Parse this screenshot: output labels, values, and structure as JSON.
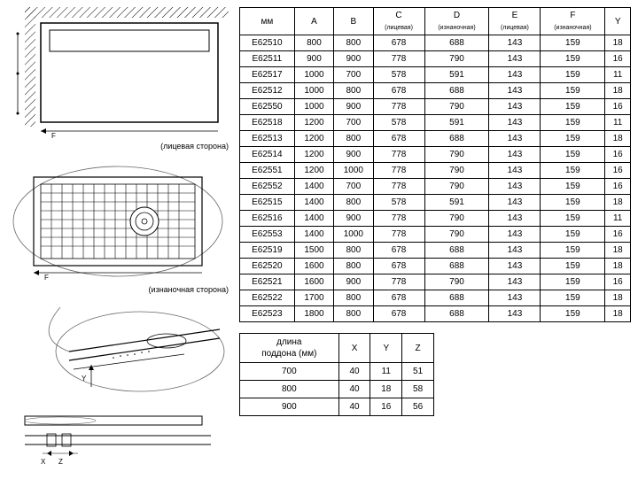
{
  "diagram1_label": "(лицевая сторона)",
  "diagram2_label": "(изнаночная сторона)",
  "table1": {
    "headers": {
      "mm": "мм",
      "a": "A",
      "b": "B",
      "c": "C",
      "c_sub": "(лицевая)",
      "d": "D",
      "d_sub": "(изнаночная)",
      "e": "E",
      "e_sub": "(лицевая)",
      "f": "F",
      "f_sub": "(изнаночная)",
      "y": "Y"
    },
    "rows": [
      [
        "E62510",
        "800",
        "800",
        "678",
        "688",
        "143",
        "159",
        "18"
      ],
      [
        "E62511",
        "900",
        "900",
        "778",
        "790",
        "143",
        "159",
        "16"
      ],
      [
        "E62517",
        "1000",
        "700",
        "578",
        "591",
        "143",
        "159",
        "11"
      ],
      [
        "E62512",
        "1000",
        "800",
        "678",
        "688",
        "143",
        "159",
        "18"
      ],
      [
        "E62550",
        "1000",
        "900",
        "778",
        "790",
        "143",
        "159",
        "16"
      ],
      [
        "E62518",
        "1200",
        "700",
        "578",
        "591",
        "143",
        "159",
        "11"
      ],
      [
        "E62513",
        "1200",
        "800",
        "678",
        "688",
        "143",
        "159",
        "18"
      ],
      [
        "E62514",
        "1200",
        "900",
        "778",
        "790",
        "143",
        "159",
        "16"
      ],
      [
        "E62551",
        "1200",
        "1000",
        "778",
        "790",
        "143",
        "159",
        "16"
      ],
      [
        "E62552",
        "1400",
        "700",
        "778",
        "790",
        "143",
        "159",
        "16"
      ],
      [
        "E62515",
        "1400",
        "800",
        "578",
        "591",
        "143",
        "159",
        "18"
      ],
      [
        "E62516",
        "1400",
        "900",
        "778",
        "790",
        "143",
        "159",
        "11"
      ],
      [
        "E62553",
        "1400",
        "1000",
        "778",
        "790",
        "143",
        "159",
        "16"
      ],
      [
        "E62519",
        "1500",
        "800",
        "678",
        "688",
        "143",
        "159",
        "18"
      ],
      [
        "E62520",
        "1600",
        "800",
        "678",
        "688",
        "143",
        "159",
        "18"
      ],
      [
        "E62521",
        "1600",
        "900",
        "778",
        "790",
        "143",
        "159",
        "16"
      ],
      [
        "E62522",
        "1700",
        "800",
        "678",
        "688",
        "143",
        "159",
        "18"
      ],
      [
        "E62523",
        "1800",
        "800",
        "678",
        "688",
        "143",
        "159",
        "18"
      ]
    ]
  },
  "table2": {
    "headers": {
      "len": "длина\nподдона (мм)",
      "x": "X",
      "y": "Y",
      "z": "Z"
    },
    "rows": [
      [
        "700",
        "40",
        "11",
        "51"
      ],
      [
        "800",
        "40",
        "18",
        "58"
      ],
      [
        "900",
        "40",
        "16",
        "56"
      ]
    ]
  },
  "colors": {
    "border": "#000000",
    "bg": "#ffffff",
    "stroke": "#888888"
  }
}
